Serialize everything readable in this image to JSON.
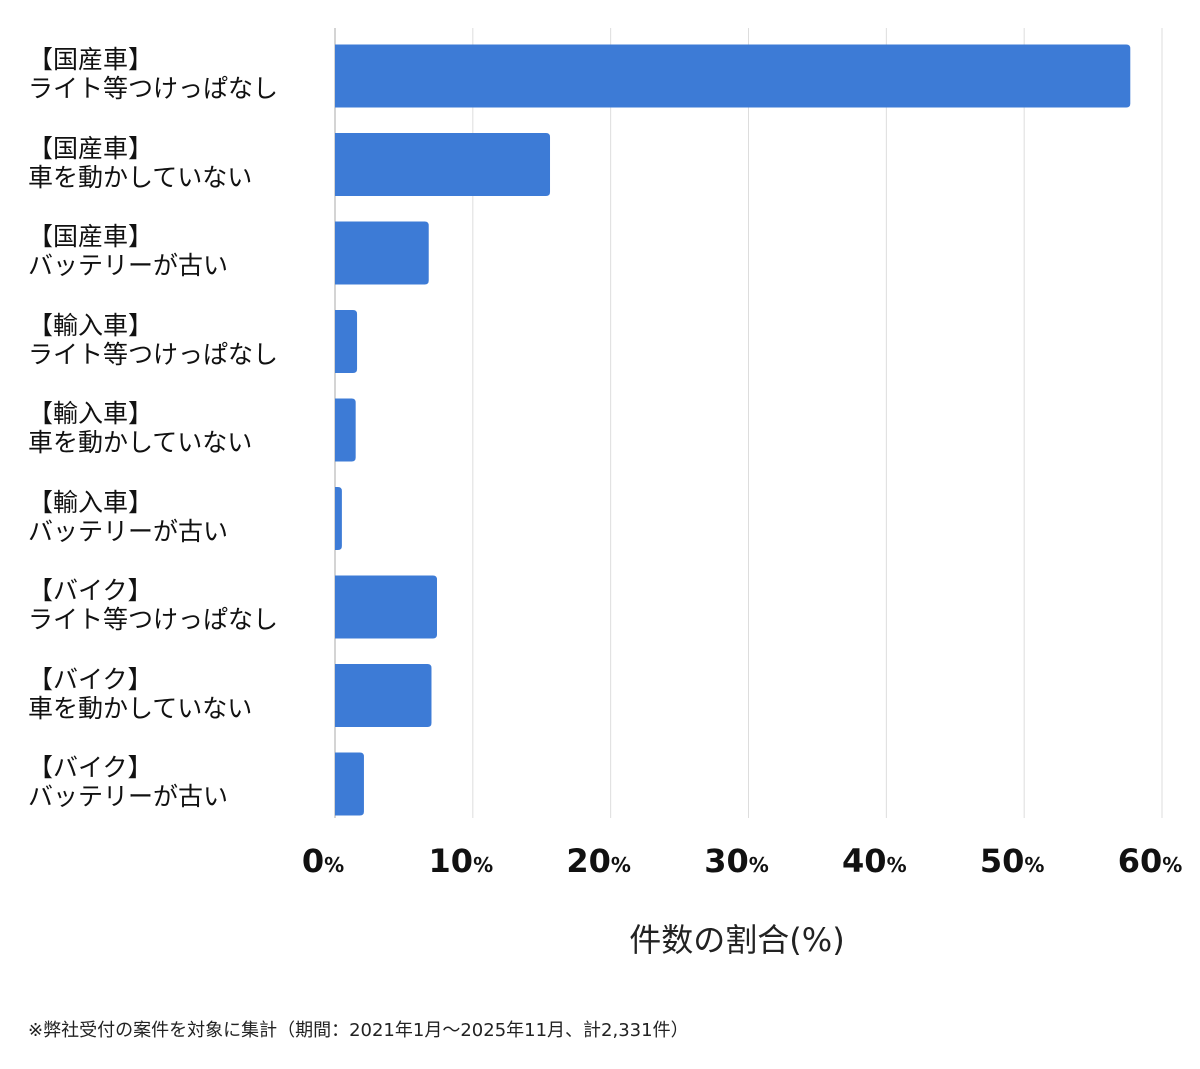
{
  "chart_data": {
    "type": "bar",
    "orientation": "horizontal",
    "categories": [
      [
        "【国産車】",
        "ライト等つけっぱなし"
      ],
      [
        "【国産車】",
        "車を動かしていない"
      ],
      [
        "【国産車】",
        "バッテリーが古い"
      ],
      [
        "【輸入車】",
        "ライト等つけっぱなし"
      ],
      [
        "【輸入車】",
        "車を動かしていない"
      ],
      [
        "【輸入車】",
        "バッテリーが古い"
      ],
      [
        "【バイク】",
        "ライト等つけっぱなし"
      ],
      [
        "【バイク】",
        "車を動かしていない"
      ],
      [
        "【バイク】",
        "バッテリーが古い"
      ]
    ],
    "values": [
      57.7,
      15.6,
      6.8,
      1.6,
      1.5,
      0.5,
      7.4,
      7.0,
      2.1
    ],
    "xlabel": "件数の割合(%)",
    "xlim": [
      0,
      60
    ],
    "xticks": [
      {
        "num": "0",
        "unit": "%"
      },
      {
        "num": "10",
        "unit": "%"
      },
      {
        "num": "20",
        "unit": "%"
      },
      {
        "num": "30",
        "unit": "%"
      },
      {
        "num": "40",
        "unit": "%"
      },
      {
        "num": "50",
        "unit": "%"
      },
      {
        "num": "60",
        "unit": "%"
      }
    ],
    "grid": true,
    "bar_color": "#3d7bd6"
  },
  "footnote": "※弊社受付の案件を対象に集計（期間：2021年1月〜2025年11月、計2,331件）"
}
